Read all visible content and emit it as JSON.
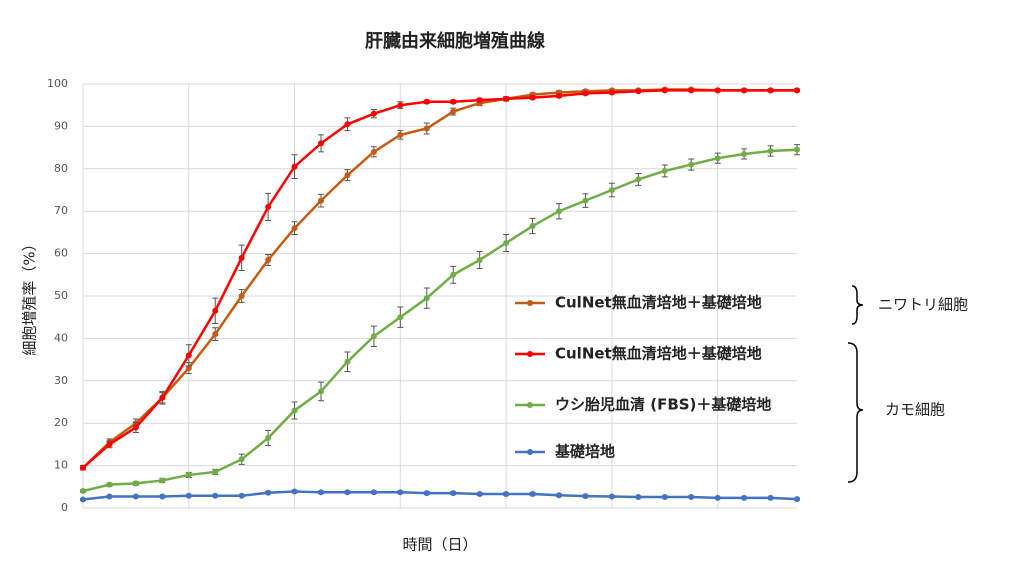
{
  "chart_data": {
    "type": "line",
    "title": "肝臓由来細胞増殖曲線",
    "x_label": "時間（日）",
    "y_label": "細胞増殖率（%）",
    "categories": [
      null,
      null,
      null,
      null,
      null,
      null,
      null,
      null,
      null,
      null,
      null,
      null,
      null,
      null,
      null,
      null,
      null,
      null,
      null,
      null,
      null,
      null,
      null,
      null,
      null,
      null,
      null,
      null
    ],
    "ylim": [
      0,
      100
    ],
    "yticks": [
      0,
      10,
      20,
      30,
      40,
      50,
      60,
      70,
      80,
      90,
      100
    ],
    "grid": true,
    "legend_groups": [
      "ニワトリ細胞",
      "カモ細胞"
    ],
    "series": [
      {
        "name": "CulNet無血清培地＋基礎培地",
        "color": "#c55a11",
        "values": [
          9.5,
          15.5,
          20,
          26,
          33,
          41,
          50,
          58.5,
          66,
          72.5,
          78.5,
          84,
          88,
          89.5,
          93.5,
          95.5,
          96.5,
          97.5,
          98,
          98.3,
          98.5,
          98.5,
          98.7,
          98.7,
          98.5,
          98.5,
          98.5,
          98.5
        ],
        "errors": [
          0.5,
          0.8,
          1,
          1.2,
          1.3,
          1.5,
          1.5,
          1.3,
          1.5,
          1.5,
          1.3,
          1.2,
          1,
          1.3,
          0.8,
          0.6,
          0.5,
          0.4,
          0.4,
          0.4,
          0.3,
          0.3,
          0.3,
          0.3,
          0.3,
          0.3,
          0.3,
          0.3
        ]
      },
      {
        "name": "CulNet無血清培地＋基礎培地",
        "color": "#ff0000",
        "values": [
          9.5,
          15,
          19,
          26,
          36,
          46.5,
          59,
          71,
          80.5,
          86,
          90.5,
          93,
          95,
          95.8,
          95.8,
          96.2,
          96.5,
          96.8,
          97.2,
          97.8,
          98,
          98.3,
          98.5,
          98.5,
          98.5,
          98.5,
          98.5,
          98.5
        ],
        "errors": [
          0.5,
          0.8,
          1.2,
          1.5,
          2.5,
          3,
          3,
          3.2,
          2.8,
          2,
          1.5,
          1,
          0.8,
          0.4,
          0.4,
          0.4,
          0.4,
          0.4,
          0.4,
          0.4,
          0.3,
          0.3,
          0.3,
          0.3,
          0.3,
          0.3,
          0.3,
          0.3
        ]
      },
      {
        "name": "ウシ胎児血清 (FBS)＋基礎培地",
        "color": "#70ad47",
        "values": [
          4,
          5.5,
          5.8,
          6.5,
          7.8,
          8.5,
          11.5,
          16.5,
          23,
          27.5,
          34.5,
          40.5,
          45,
          49.5,
          55,
          58.5,
          62.5,
          66.5,
          70,
          72.5,
          75,
          77.5,
          79.5,
          81,
          82.5,
          83.5,
          84.2,
          84.5
        ],
        "errors": [
          0.3,
          0.4,
          0.4,
          0.5,
          0.6,
          0.6,
          1.2,
          1.8,
          2,
          2.2,
          2.3,
          2.4,
          2.4,
          2.4,
          2,
          2,
          2,
          1.8,
          1.8,
          1.6,
          1.6,
          1.4,
          1.4,
          1.3,
          1.2,
          1.2,
          1.2,
          1.2
        ]
      },
      {
        "name": "基礎培地",
        "color": "#4472c4",
        "values": [
          2,
          2.7,
          2.7,
          2.7,
          2.9,
          2.9,
          2.9,
          3.6,
          3.9,
          3.7,
          3.7,
          3.7,
          3.7,
          3.5,
          3.5,
          3.3,
          3.3,
          3.3,
          3,
          2.8,
          2.7,
          2.6,
          2.6,
          2.6,
          2.4,
          2.4,
          2.4,
          2.1
        ],
        "errors": [
          0.2,
          0.2,
          0.2,
          0.2,
          0.2,
          0.2,
          0.2,
          0.3,
          0.3,
          0.3,
          0.3,
          0.3,
          0.3,
          0.3,
          0.3,
          0.3,
          0.3,
          0.3,
          0.3,
          0.3,
          0.2,
          0.2,
          0.2,
          0.2,
          0.2,
          0.2,
          0.2,
          0.2
        ]
      }
    ]
  }
}
